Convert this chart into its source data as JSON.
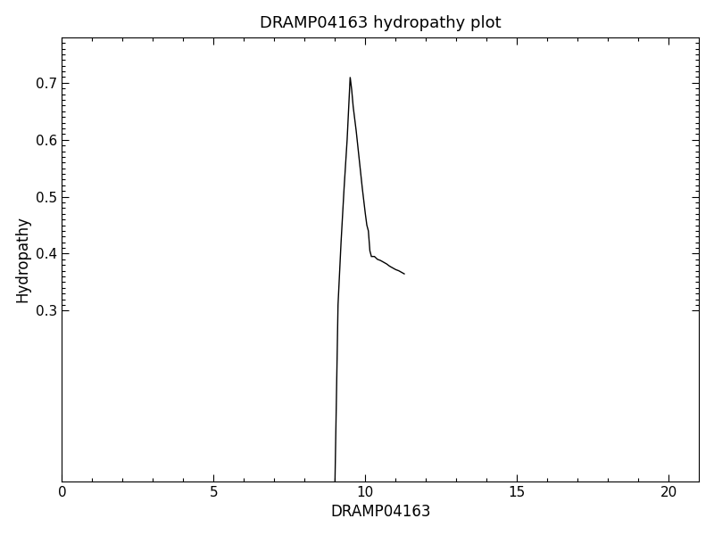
{
  "title": "DRAMP04163 hydropathy plot",
  "xlabel": "DRAMP04163",
  "ylabel": "Hydropathy",
  "xlim": [
    0,
    21
  ],
  "ylim": [
    0,
    0.78
  ],
  "xticks": [
    0,
    5,
    10,
    15,
    20
  ],
  "yticks": [
    0.3,
    0.4,
    0.5,
    0.6,
    0.7
  ],
  "line_color": "black",
  "line_width": 1.0,
  "background_color": "#ffffff",
  "x": [
    9.0,
    9.1,
    9.2,
    9.3,
    9.4,
    9.45,
    9.5,
    9.55,
    9.6,
    9.7,
    9.8,
    9.9,
    10.0,
    10.05,
    10.1,
    10.15,
    10.2,
    10.3,
    10.4,
    10.5,
    10.6,
    10.7,
    10.8,
    10.9,
    11.0,
    11.1,
    11.2,
    11.3
  ],
  "y": [
    0.0,
    0.31,
    0.42,
    0.515,
    0.6,
    0.655,
    0.71,
    0.688,
    0.658,
    0.615,
    0.565,
    0.515,
    0.47,
    0.45,
    0.44,
    0.405,
    0.395,
    0.395,
    0.39,
    0.388,
    0.385,
    0.382,
    0.378,
    0.375,
    0.372,
    0.37,
    0.367,
    0.364
  ],
  "title_fontsize": 13,
  "label_fontsize": 12,
  "tick_fontsize": 11,
  "minor_xticks": [
    1,
    2,
    3,
    4,
    6,
    7,
    8,
    9,
    11,
    12,
    13,
    14,
    16,
    17,
    18,
    19
  ],
  "minor_yticks": [
    0.31,
    0.32,
    0.33,
    0.34,
    0.35,
    0.36,
    0.37,
    0.38,
    0.39,
    0.41,
    0.42,
    0.43,
    0.44,
    0.45,
    0.46,
    0.47,
    0.48,
    0.49,
    0.51,
    0.52,
    0.53,
    0.54,
    0.55,
    0.56,
    0.57,
    0.58,
    0.59,
    0.61,
    0.62,
    0.63,
    0.64,
    0.65,
    0.66,
    0.67,
    0.68,
    0.69,
    0.71,
    0.72,
    0.73,
    0.74,
    0.75,
    0.76,
    0.77
  ]
}
